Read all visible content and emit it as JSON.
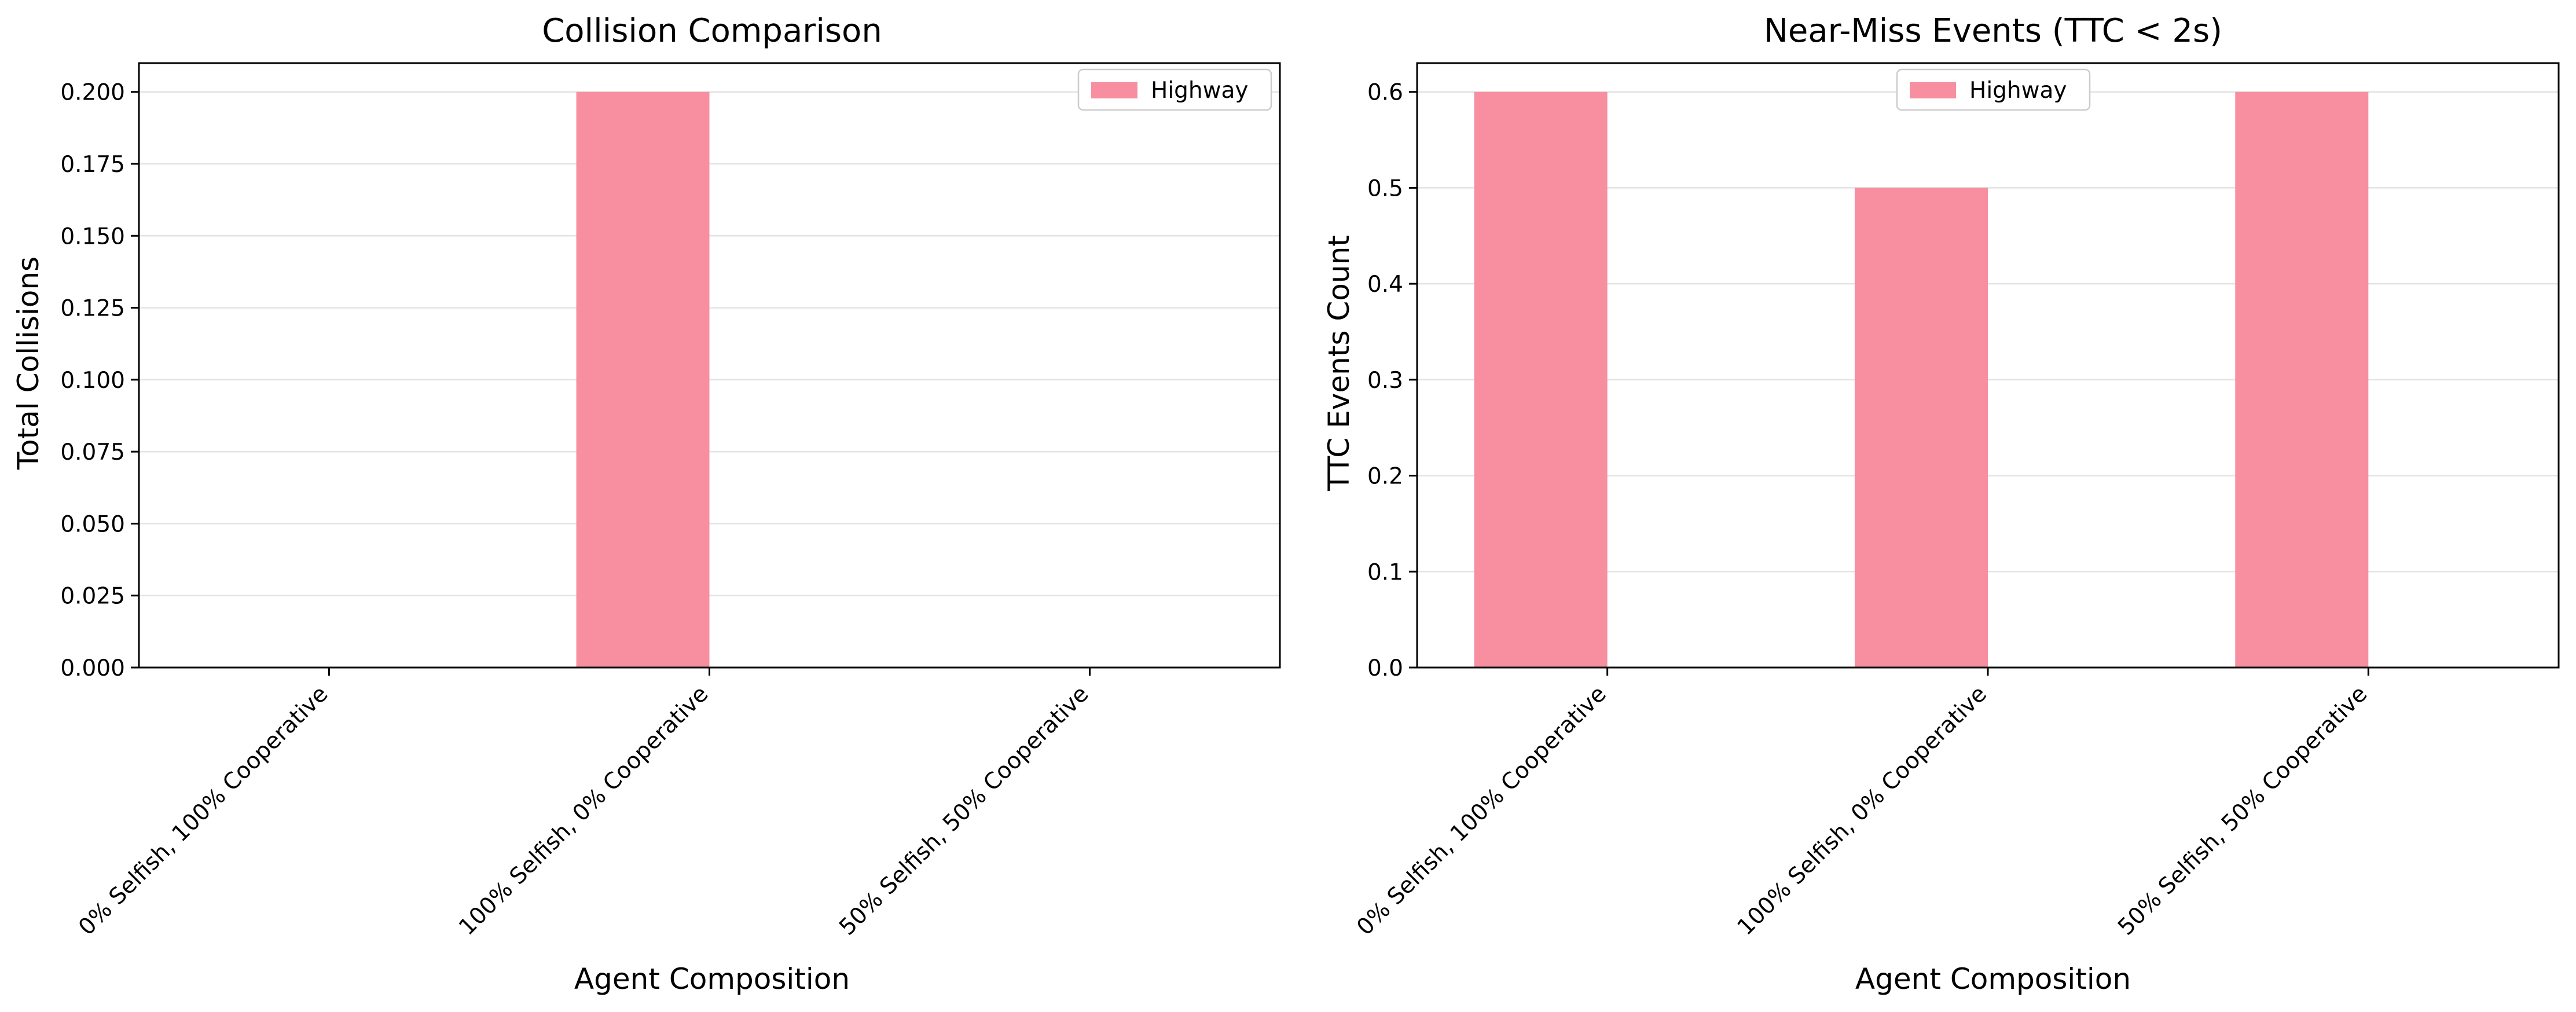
{
  "colors": {
    "bar": "#f78fa0",
    "grid": "#e3e3e3",
    "axis": "#000000"
  },
  "chart_data": [
    {
      "type": "bar",
      "title": "Collision Comparison",
      "xlabel": "Agent Composition",
      "ylabel": "Total Collisions",
      "categories": [
        "0% Selfish, 100% Cooperative",
        "100% Selfish, 0% Cooperative",
        "50% Selfish, 50% Cooperative"
      ],
      "series": [
        {
          "name": "Highway",
          "values": [
            0.0,
            0.2,
            0.0
          ]
        }
      ],
      "ylim": [
        0,
        0.21
      ],
      "yticks": [
        0.0,
        0.025,
        0.05,
        0.075,
        0.1,
        0.125,
        0.15,
        0.175,
        0.2
      ],
      "ytick_labels": [
        "0.000",
        "0.025",
        "0.050",
        "0.075",
        "0.100",
        "0.125",
        "0.150",
        "0.175",
        "0.200"
      ],
      "grid": "y",
      "legend": "upper right"
    },
    {
      "type": "bar",
      "title": "Near-Miss Events (TTC < 2s)",
      "xlabel": "Agent Composition",
      "ylabel": "TTC Events Count",
      "categories": [
        "0% Selfish, 100% Cooperative",
        "100% Selfish, 0% Cooperative",
        "50% Selfish, 50% Cooperative"
      ],
      "series": [
        {
          "name": "Highway",
          "values": [
            0.6,
            0.5,
            0.6
          ]
        }
      ],
      "ylim": [
        0,
        0.63
      ],
      "yticks": [
        0.0,
        0.1,
        0.2,
        0.3,
        0.4,
        0.5,
        0.6
      ],
      "ytick_labels": [
        "0.0",
        "0.1",
        "0.2",
        "0.3",
        "0.4",
        "0.5",
        "0.6"
      ],
      "grid": "y",
      "legend": "upper center"
    }
  ]
}
